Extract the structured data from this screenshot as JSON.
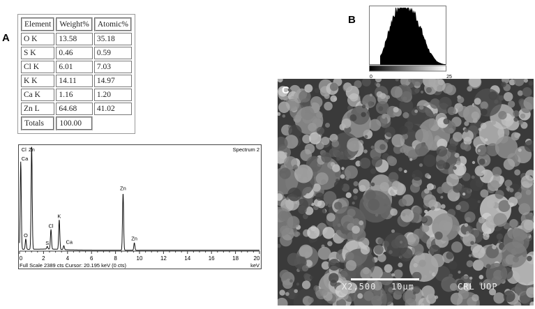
{
  "panels": {
    "a": "A",
    "b": "B",
    "c": "C"
  },
  "table": {
    "headers": [
      "Element",
      "Weight%",
      "Atomic%"
    ],
    "rows": [
      [
        "O K",
        "13.58",
        "35.18"
      ],
      [
        "S K",
        "0.46",
        "0.59"
      ],
      [
        "Cl K",
        "6.01",
        "7.03"
      ],
      [
        "K K",
        "14.11",
        "14.97"
      ],
      [
        "Ca K",
        "1.16",
        "1.20"
      ],
      [
        "Zn L",
        "64.68",
        "41.02"
      ]
    ],
    "totals": [
      "Totals",
      "100.00"
    ]
  },
  "chart_data": [
    {
      "type": "line",
      "title": "Spectrum 2",
      "xlabel": "keV",
      "footer": "Full Scale 2389 cts  Cursor: 20.195 keV (0 cts)",
      "xlim": [
        0,
        20
      ],
      "ylim": [
        0,
        2389
      ],
      "xticks": [
        0,
        2,
        4,
        6,
        8,
        10,
        12,
        14,
        16,
        18,
        20
      ],
      "peaks": [
        {
          "label": "Cl Ca",
          "x": 0.1,
          "y": 2000
        },
        {
          "label": "Zn",
          "x": 1.01,
          "y": 2389
        },
        {
          "label": "O",
          "x": 0.52,
          "y": 240
        },
        {
          "label": "S",
          "x": 2.31,
          "y": 60
        },
        {
          "label": "Cl",
          "x": 2.62,
          "y": 450
        },
        {
          "label": "K",
          "x": 3.31,
          "y": 680
        },
        {
          "label": "Ca",
          "x": 3.69,
          "y": 90
        },
        {
          "label": "Zn",
          "x": 8.63,
          "y": 1310
        },
        {
          "label": "Zn",
          "x": 9.57,
          "y": 170
        }
      ]
    },
    {
      "type": "area",
      "title": "",
      "x_min_label": "0",
      "x_max_label": "25",
      "shape": "bimodal gray-level histogram"
    }
  ],
  "sem": {
    "magnification": "X2,500",
    "scale_bar": "10μm",
    "lab": "CRL UOP"
  }
}
